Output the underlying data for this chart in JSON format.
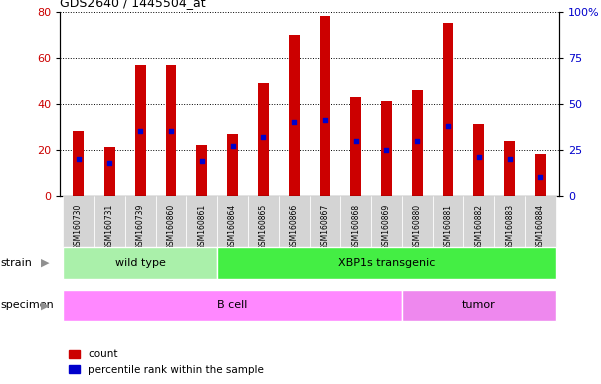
{
  "title": "GDS2640 / 1445504_at",
  "samples": [
    "GSM160730",
    "GSM160731",
    "GSM160739",
    "GSM160860",
    "GSM160861",
    "GSM160864",
    "GSM160865",
    "GSM160866",
    "GSM160867",
    "GSM160868",
    "GSM160869",
    "GSM160880",
    "GSM160881",
    "GSM160882",
    "GSM160883",
    "GSM160884"
  ],
  "counts": [
    28,
    21,
    57,
    57,
    22,
    27,
    49,
    70,
    78,
    43,
    41,
    46,
    75,
    31,
    24,
    18
  ],
  "percentile_ranks": [
    20,
    18,
    35,
    35,
    19,
    27,
    32,
    40,
    41,
    30,
    25,
    30,
    38,
    21,
    20,
    10
  ],
  "bar_color": "#cc0000",
  "dot_color": "#0000cc",
  "ylim_left": [
    0,
    80
  ],
  "ylim_right": [
    0,
    100
  ],
  "yticks_left": [
    0,
    20,
    40,
    60,
    80
  ],
  "yticks_right": [
    0,
    25,
    50,
    75,
    100
  ],
  "ytick_labels_right": [
    "0",
    "25",
    "50",
    "75",
    "100%"
  ],
  "strain_groups": [
    {
      "label": "wild type",
      "start": 0,
      "end": 4,
      "color": "#aaf0aa"
    },
    {
      "label": "XBP1s transgenic",
      "start": 5,
      "end": 15,
      "color": "#44ee44"
    }
  ],
  "specimen_groups": [
    {
      "label": "B cell",
      "start": 0,
      "end": 10,
      "color": "#ff88ff"
    },
    {
      "label": "tumor",
      "start": 11,
      "end": 15,
      "color": "#ee88ee"
    }
  ],
  "legend_count_label": "count",
  "legend_pct_label": "percentile rank within the sample",
  "xlabel_bg": "#d0d0d0",
  "left_label_color": "#808080"
}
